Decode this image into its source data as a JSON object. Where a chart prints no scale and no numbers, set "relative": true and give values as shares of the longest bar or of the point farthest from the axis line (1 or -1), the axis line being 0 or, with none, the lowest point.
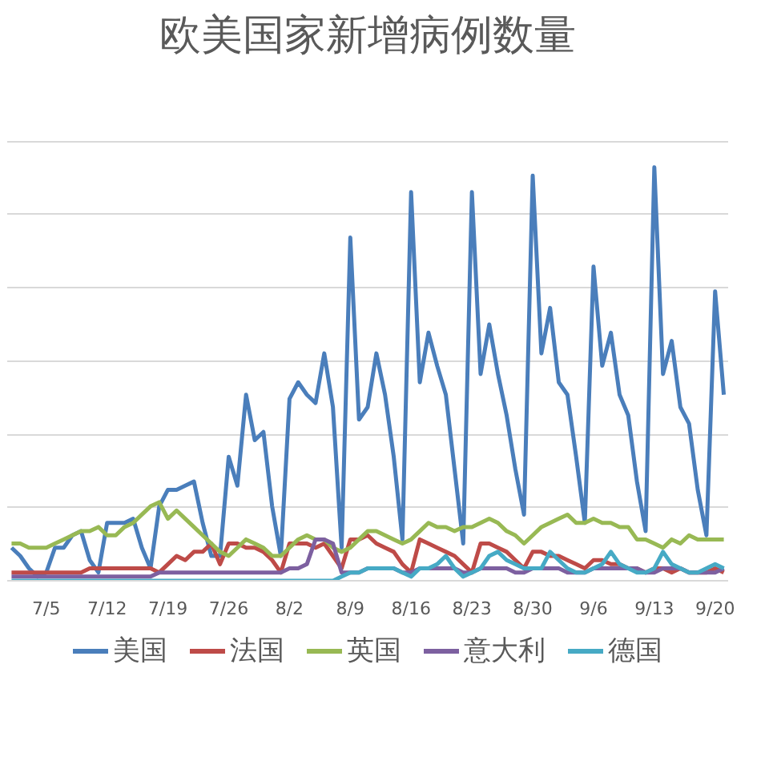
{
  "chart_data": {
    "type": "line",
    "title": "欧美国家新增病例数量",
    "relative": true,
    "grid": "y",
    "legend": "bottom",
    "marker": "none",
    "line_style": "solid",
    "categories": [
      null,
      null,
      null,
      null,
      "7/5",
      null,
      null,
      null,
      null,
      null,
      null,
      "7/12",
      null,
      null,
      null,
      null,
      null,
      null,
      "7/19",
      null,
      null,
      null,
      null,
      null,
      null,
      "7/26",
      null,
      null,
      null,
      null,
      null,
      null,
      "8/2",
      null,
      null,
      null,
      null,
      null,
      null,
      "8/9",
      null,
      null,
      null,
      null,
      null,
      null,
      "8/16",
      null,
      null,
      null,
      null,
      null,
      null,
      "8/23",
      null,
      null,
      null,
      null,
      null,
      null,
      "8/30",
      null,
      null,
      null,
      null,
      null,
      null,
      "9/6",
      null,
      null,
      null,
      null,
      null,
      null,
      "9/13",
      null,
      null,
      null,
      null,
      null,
      null,
      "9/20",
      null
    ],
    "series": [
      {
        "name": "美国",
        "color": "#4a7ebb",
        "values": [
          0.08,
          0.06,
          0.03,
          0.01,
          0.02,
          0.08,
          0.08,
          0.11,
          0.12,
          0.05,
          0.02,
          0.14,
          0.14,
          0.14,
          0.15,
          0.08,
          0.03,
          0.18,
          0.22,
          0.22,
          0.23,
          0.24,
          0.14,
          0.06,
          0.06,
          0.3,
          0.23,
          0.45,
          0.34,
          0.36,
          0.18,
          0.06,
          0.44,
          0.48,
          0.45,
          0.43,
          0.55,
          0.42,
          0.08,
          0.83,
          0.39,
          0.42,
          0.55,
          0.45,
          0.3,
          0.1,
          0.94,
          0.48,
          0.6,
          0.52,
          0.45,
          0.27,
          0.09,
          0.94,
          0.5,
          0.62,
          0.5,
          0.4,
          0.27,
          0.16,
          0.98,
          0.55,
          0.66,
          0.48,
          0.45,
          0.3,
          0.14,
          0.76,
          0.52,
          0.6,
          0.45,
          0.4,
          0.24,
          0.12,
          1.0,
          0.5,
          0.58,
          0.42,
          0.38,
          0.22,
          0.11,
          0.7,
          0.45
        ]
      },
      {
        "name": "法国",
        "color": "#be4b48",
        "values": [
          0.02,
          0.02,
          0.02,
          0.02,
          0.02,
          0.02,
          0.02,
          0.02,
          0.02,
          0.03,
          0.03,
          0.03,
          0.03,
          0.03,
          0.03,
          0.03,
          0.03,
          0.02,
          0.04,
          0.06,
          0.05,
          0.07,
          0.07,
          0.09,
          0.04,
          0.09,
          0.09,
          0.08,
          0.08,
          0.07,
          0.05,
          0.02,
          0.09,
          0.09,
          0.09,
          0.08,
          0.09,
          0.06,
          0.03,
          0.1,
          0.1,
          0.11,
          0.09,
          0.08,
          0.07,
          0.04,
          0.02,
          0.1,
          0.09,
          0.08,
          0.07,
          0.06,
          0.04,
          0.02,
          0.09,
          0.09,
          0.08,
          0.07,
          0.05,
          0.03,
          0.07,
          0.07,
          0.06,
          0.06,
          0.05,
          0.04,
          0.03,
          0.05,
          0.05,
          0.04,
          0.04,
          0.03,
          0.03,
          0.02,
          0.03,
          0.03,
          0.02,
          0.03,
          0.02,
          0.02,
          0.02,
          0.03,
          0.02
        ]
      },
      {
        "name": "英国",
        "color": "#98b954",
        "values": [
          0.09,
          0.09,
          0.08,
          0.08,
          0.08,
          0.09,
          0.1,
          0.11,
          0.12,
          0.12,
          0.13,
          0.11,
          0.11,
          0.13,
          0.14,
          0.16,
          0.18,
          0.19,
          0.15,
          0.17,
          0.15,
          0.13,
          0.11,
          0.09,
          0.07,
          0.06,
          0.08,
          0.1,
          0.09,
          0.08,
          0.06,
          0.06,
          0.08,
          0.1,
          0.11,
          0.1,
          0.1,
          0.08,
          0.07,
          0.08,
          0.1,
          0.12,
          0.12,
          0.11,
          0.1,
          0.09,
          0.1,
          0.12,
          0.14,
          0.13,
          0.13,
          0.12,
          0.13,
          0.13,
          0.14,
          0.15,
          0.14,
          0.12,
          0.11,
          0.09,
          0.11,
          0.13,
          0.14,
          0.15,
          0.16,
          0.14,
          0.14,
          0.15,
          0.14,
          0.14,
          0.13,
          0.13,
          0.1,
          0.1,
          0.09,
          0.08,
          0.1,
          0.09,
          0.11,
          0.1,
          0.1,
          0.1,
          0.1
        ]
      },
      {
        "name": "意大利",
        "color": "#7d60a0",
        "values": [
          0.01,
          0.01,
          0.01,
          0.01,
          0.01,
          0.01,
          0.01,
          0.01,
          0.01,
          0.01,
          0.01,
          0.01,
          0.01,
          0.01,
          0.01,
          0.01,
          0.01,
          0.02,
          0.02,
          0.02,
          0.02,
          0.02,
          0.02,
          0.02,
          0.02,
          0.02,
          0.02,
          0.02,
          0.02,
          0.02,
          0.02,
          0.02,
          0.03,
          0.03,
          0.04,
          0.1,
          0.1,
          0.09,
          0.02,
          0.02,
          0.02,
          0.03,
          0.03,
          0.03,
          0.03,
          0.02,
          0.02,
          0.03,
          0.03,
          0.03,
          0.03,
          0.03,
          0.02,
          0.02,
          0.03,
          0.03,
          0.03,
          0.03,
          0.02,
          0.02,
          0.03,
          0.03,
          0.03,
          0.03,
          0.02,
          0.02,
          0.02,
          0.03,
          0.03,
          0.03,
          0.03,
          0.03,
          0.03,
          0.02,
          0.02,
          0.03,
          0.03,
          0.03,
          0.02,
          0.02,
          0.02,
          0.02,
          0.03
        ]
      },
      {
        "name": "德国",
        "color": "#46aac5",
        "values": [
          0.0,
          0.0,
          0.0,
          0.0,
          0.0,
          0.0,
          0.0,
          0.0,
          0.0,
          0.0,
          0.0,
          0.0,
          0.0,
          0.0,
          0.0,
          0.0,
          0.0,
          0.0,
          0.0,
          0.0,
          0.0,
          0.0,
          0.0,
          0.0,
          0.0,
          0.0,
          0.0,
          0.0,
          0.0,
          0.0,
          0.0,
          0.0,
          0.0,
          0.0,
          0.0,
          0.0,
          0.0,
          0.0,
          0.01,
          0.02,
          0.02,
          0.03,
          0.03,
          0.03,
          0.03,
          0.02,
          0.01,
          0.03,
          0.03,
          0.04,
          0.06,
          0.03,
          0.01,
          0.02,
          0.03,
          0.06,
          0.07,
          0.05,
          0.04,
          0.03,
          0.03,
          0.03,
          0.07,
          0.05,
          0.03,
          0.02,
          0.02,
          0.03,
          0.04,
          0.07,
          0.04,
          0.03,
          0.02,
          0.02,
          0.03,
          0.07,
          0.04,
          0.03,
          0.02,
          0.02,
          0.03,
          0.04,
          0.03
        ]
      }
    ]
  }
}
